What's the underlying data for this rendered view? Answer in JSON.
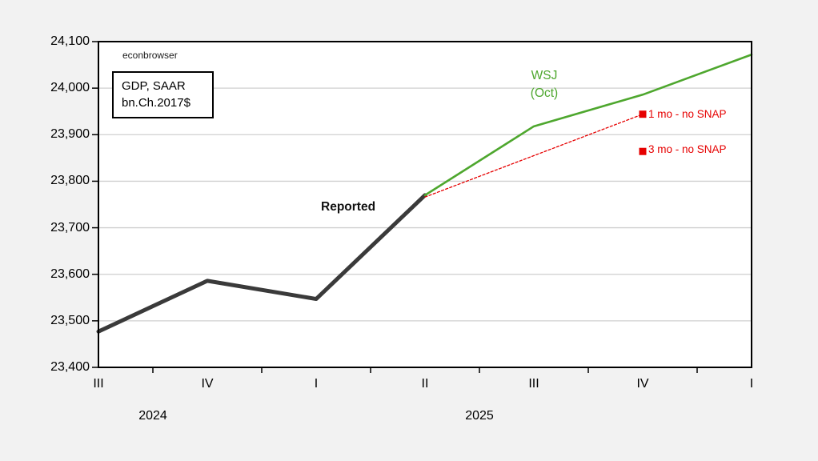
{
  "chart_data": {
    "type": "line",
    "title": "GDP, SAAR bn.Ch.2017$",
    "watermark": "econbrowser",
    "xlabel": "",
    "ylabel": "GDP, SAAR bn.Ch.2017$",
    "ylim": [
      23400,
      24100
    ],
    "ytick_step": 100,
    "grid": "horizontal",
    "legend_position": "inline-annotations",
    "x_categories": [
      "III",
      "IV",
      "I",
      "II",
      "III",
      "IV",
      "I"
    ],
    "year_labels": [
      {
        "text": "2024",
        "between_index": 0.5
      },
      {
        "text": "2025",
        "between_index": 3.5
      }
    ],
    "series": [
      {
        "name": "Reported",
        "type": "line",
        "color": "#3a3a3a",
        "width": 5,
        "dash": "",
        "x": [
          0,
          1,
          2,
          3
        ],
        "values": [
          23477,
          23586,
          23547,
          23770
        ]
      },
      {
        "name": "WSJ (Oct)",
        "type": "line",
        "color": "#4ea72e",
        "width": 2.6,
        "dash": "",
        "x": [
          3,
          4,
          5,
          6
        ],
        "values": [
          23770,
          23918,
          23986,
          24072
        ]
      },
      {
        "name": "1 mo - no SNAP",
        "type": "line",
        "color": "#e60000",
        "width": 1.3,
        "dash": "3,2.5",
        "x": [
          3,
          5
        ],
        "values": [
          23766,
          23944
        ],
        "end_marker": "square",
        "marker_size": 9
      },
      {
        "name": "3 mo - no SNAP",
        "type": "scatter",
        "color": "#e60000",
        "marker": "square",
        "marker_size": 9,
        "x": [
          5
        ],
        "values": [
          23864
        ]
      }
    ],
    "annotations": {
      "watermark": {
        "text": "econbrowser"
      },
      "title_box": {
        "line1": "GDP, SAAR",
        "line2": "bn.Ch.2017$"
      },
      "reported": {
        "text": "Reported"
      },
      "wsj": {
        "line1": "WSJ",
        "line2": "(Oct)"
      },
      "one_mo": {
        "text": "1 mo - no SNAP"
      },
      "three_mo": {
        "text": "3 mo - no SNAP"
      }
    },
    "colors": {
      "reported_line": "#3a3a3a",
      "wsj_line": "#4ea72e",
      "wsj_text": "#4ea72e",
      "scenario_red": "#e60000",
      "gridline": "#cfcfcf",
      "plot_background": "#ffffff",
      "page_background": "#f2f2f2",
      "axis": "#000000"
    }
  }
}
